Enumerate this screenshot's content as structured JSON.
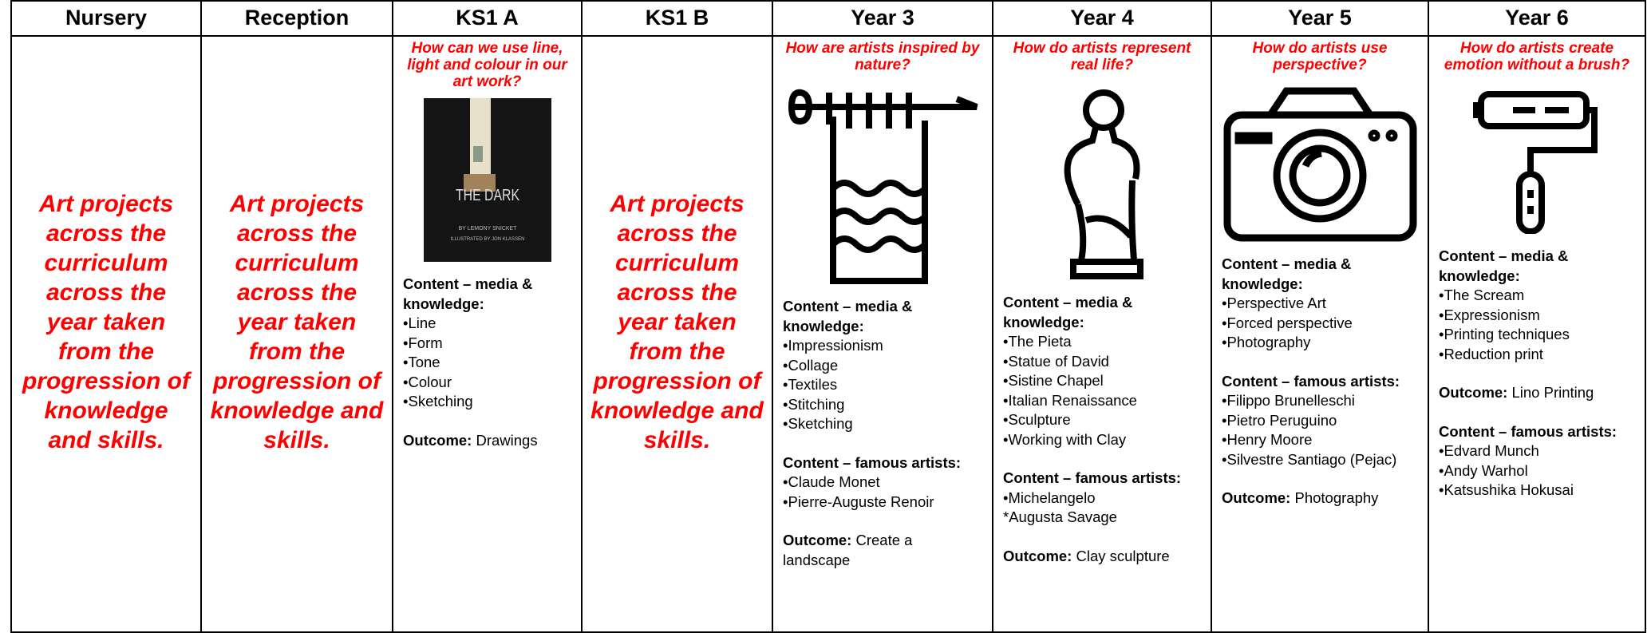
{
  "columns": [
    {
      "header": "Nursery",
      "text": "Art projects across the curriculum across the year taken from the progression of knowledge and skills."
    },
    {
      "header": "Reception",
      "text": "Art projects across the curriculum across the year taken from the progression of knowledge and skills."
    },
    {
      "header": "KS1 A",
      "question": "How can we use line, light and colour in our art work?",
      "cover": {
        "title": "THE DARK",
        "author": "BY LEMONY SNICKET",
        "illustrator": "ILLUSTRATED BY JON KLASSEN"
      },
      "sections": [
        {
          "heading": "Content – media & knowledge:",
          "items": [
            "•Line",
            "•Form",
            "•Tone",
            "•Colour",
            "•Sketching"
          ]
        },
        {
          "label": "Outcome:",
          "text": "Drawings"
        }
      ]
    },
    {
      "header": "KS1 B",
      "text": "Art projects across the curriculum across the year taken from the progression of knowledge and skills."
    },
    {
      "header": "Year 3",
      "question": "How are artists inspired by nature?",
      "sections": [
        {
          "heading": "Content – media & knowledge:",
          "items": [
            "•Impressionism",
            "•Collage",
            "•Textiles",
            "•Stitching",
            "•Sketching"
          ]
        },
        {
          "heading": "Content – famous artists:",
          "items": [
            "•Claude Monet",
            "•Pierre-Auguste Renoir"
          ]
        },
        {
          "label": "Outcome:",
          "text": "Create a landscape"
        }
      ]
    },
    {
      "header": "Year 4",
      "question": "How do artists represent real life?",
      "sections": [
        {
          "heading": "Content – media & knowledge:",
          "items": [
            "•The Pieta",
            "•Statue of David",
            "•Sistine Chapel",
            "•Italian Renaissance",
            "•Sculpture",
            "•Working with Clay"
          ]
        },
        {
          "heading": "Content – famous artists:",
          "items": [
            "•Michelangelo",
            "*Augusta Savage"
          ]
        },
        {
          "label": "Outcome:",
          "text": "Clay sculpture"
        }
      ]
    },
    {
      "header": "Year 5",
      "question": "How do artists use perspective?",
      "sections": [
        {
          "heading": "Content – media & knowledge:",
          "items": [
            "•Perspective Art",
            "•Forced perspective",
            "•Photography"
          ]
        },
        {
          "heading": "Content – famous artists:",
          "items": [
            "•Filippo Brunelleschi",
            "•Pietro Peruguino",
            "•Henry Moore",
            "•Silvestre Santiago (Pejac)"
          ]
        },
        {
          "label": "Outcome:",
          "text": "Photography"
        }
      ]
    },
    {
      "header": "Year 6",
      "question": "How do artists create emotion without a brush?",
      "sections": [
        {
          "heading": "Content – media & knowledge:",
          "items": [
            "•The Scream",
            "•Expressionism",
            "•Printing techniques",
            "•Reduction print"
          ]
        },
        {
          "label": "Outcome:",
          "text": "Lino Printing"
        },
        {
          "heading": "Content – famous artists:",
          "items": [
            "•Edvard Munch",
            "•Andy Warhol",
            "•Katsushika Hokusai"
          ]
        }
      ]
    }
  ]
}
